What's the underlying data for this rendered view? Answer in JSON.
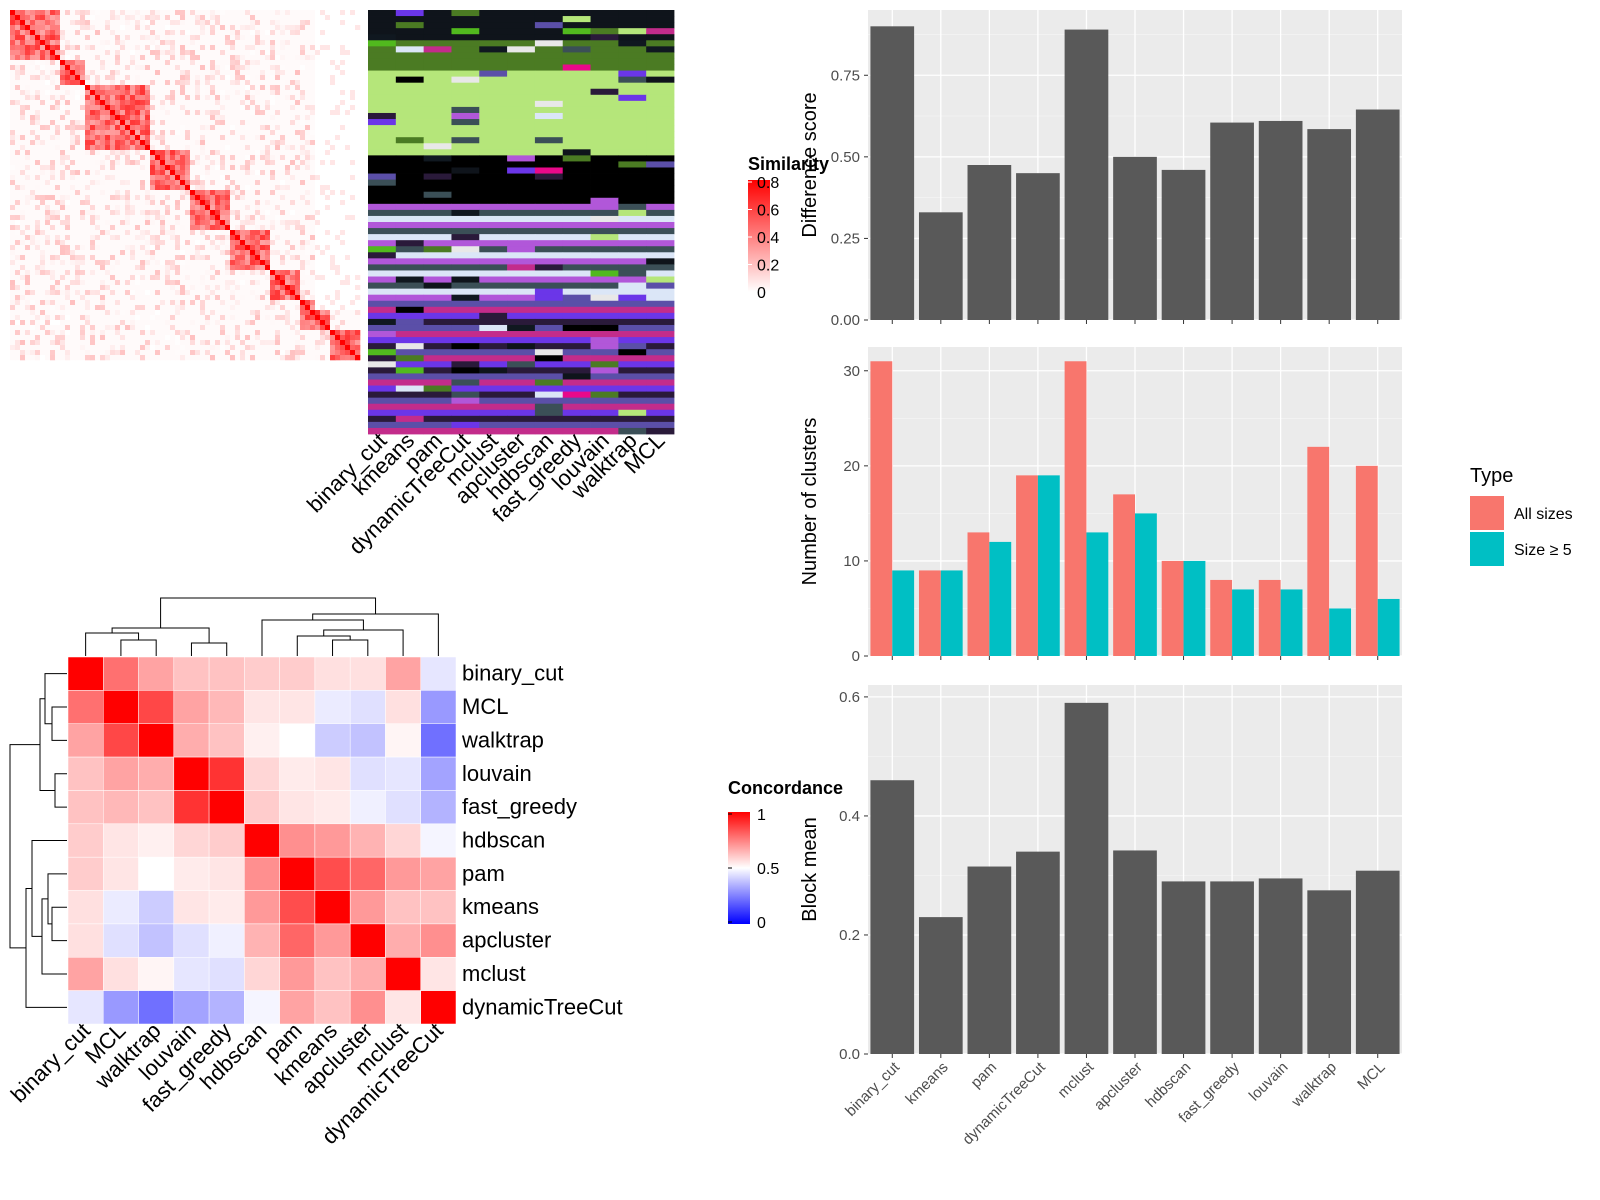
{
  "methods_order": [
    "binary_cut",
    "kmeans",
    "pam",
    "dynamicTreeCut",
    "mclust",
    "apcluster",
    "hdbscan",
    "fast_greedy",
    "louvain",
    "walktrap",
    "MCL"
  ],
  "similarity_panel": {
    "legend_title": "Similarity",
    "legend_ticks": [
      "0.8",
      "0.6",
      "0.4",
      "0.2",
      "0"
    ],
    "membership_labels": [
      "binary_cut",
      "kmeans",
      "pam",
      "dynamicTreeCut",
      "mclust",
      "apcluster",
      "hdbscan",
      "fast_greedy",
      "louvain",
      "walktrap",
      "MCL"
    ]
  },
  "concordance_panel": {
    "legend_title": "Concordance",
    "legend_ticks": [
      "1",
      "0.5",
      "0"
    ],
    "row_order": [
      "binary_cut",
      "MCL",
      "walktrap",
      "louvain",
      "fast_greedy",
      "hdbscan",
      "pam",
      "kmeans",
      "apcluster",
      "mclust",
      "dynamicTreeCut"
    ]
  },
  "chart_data": [
    {
      "type": "bar",
      "categories": [
        "binary_cut",
        "kmeans",
        "pam",
        "dynamicTreeCut",
        "mclust",
        "apcluster",
        "hdbscan",
        "fast_greedy",
        "louvain",
        "walktrap",
        "MCL"
      ],
      "values": [
        0.9,
        0.33,
        0.475,
        0.45,
        0.89,
        0.5,
        0.46,
        0.605,
        0.61,
        0.585,
        0.645
      ],
      "ylabel": "Difference score",
      "yticks": [
        "0.00",
        "0.25",
        "0.50",
        "0.75"
      ],
      "ylim": [
        0,
        0.95
      ],
      "grid": true,
      "bar_color": "#595959"
    },
    {
      "type": "bar",
      "categories": [
        "binary_cut",
        "kmeans",
        "pam",
        "dynamicTreeCut",
        "mclust",
        "apcluster",
        "hdbscan",
        "fast_greedy",
        "louvain",
        "walktrap",
        "MCL"
      ],
      "series": [
        {
          "name": "All sizes",
          "color": "#F8766D",
          "values": [
            31,
            9,
            13,
            19,
            31,
            17,
            10,
            8,
            8,
            22,
            20
          ]
        },
        {
          "name": "Size ≥ 5",
          "color": "#00BFC4",
          "values": [
            9,
            9,
            12,
            19,
            13,
            15,
            10,
            7,
            7,
            5,
            6
          ]
        }
      ],
      "ylabel": "Number of clusters",
      "yticks": [
        "0",
        "10",
        "20",
        "30"
      ],
      "ylim": [
        0,
        32.5
      ],
      "legend_title": "Type",
      "legend_placement": "right",
      "grid": true
    },
    {
      "type": "bar",
      "categories": [
        "binary_cut",
        "kmeans",
        "pam",
        "dynamicTreeCut",
        "mclust",
        "apcluster",
        "hdbscan",
        "fast_greedy",
        "louvain",
        "walktrap",
        "MCL"
      ],
      "values": [
        0.46,
        0.23,
        0.315,
        0.34,
        0.59,
        0.342,
        0.29,
        0.29,
        0.295,
        0.275,
        0.308
      ],
      "ylabel": "Block mean",
      "yticks": [
        "0.0",
        "0.2",
        "0.4",
        "0.6"
      ],
      "ylim": [
        0,
        0.62
      ],
      "grid": true,
      "bar_color": "#595959"
    },
    {
      "type": "heatmap",
      "rows": [
        "binary_cut",
        "MCL",
        "walktrap",
        "louvain",
        "fast_greedy",
        "hdbscan",
        "pam",
        "kmeans",
        "apcluster",
        "mclust",
        "dynamicTreeCut"
      ],
      "columns": [
        "binary_cut",
        "MCL",
        "walktrap",
        "louvain",
        "fast_greedy",
        "hdbscan",
        "pam",
        "kmeans",
        "apcluster",
        "mclust",
        "dynamicTreeCut"
      ],
      "values": [
        [
          1.0,
          0.78,
          0.68,
          0.62,
          0.62,
          0.6,
          0.6,
          0.56,
          0.56,
          0.68,
          0.45
        ],
        [
          0.78,
          1.0,
          0.86,
          0.68,
          0.64,
          0.55,
          0.55,
          0.46,
          0.44,
          0.56,
          0.3
        ],
        [
          0.68,
          0.86,
          1.0,
          0.66,
          0.62,
          0.53,
          0.5,
          0.4,
          0.38,
          0.52,
          0.22
        ],
        [
          0.62,
          0.68,
          0.66,
          1.0,
          0.9,
          0.58,
          0.54,
          0.55,
          0.44,
          0.45,
          0.32
        ],
        [
          0.62,
          0.64,
          0.62,
          0.9,
          1.0,
          0.6,
          0.55,
          0.54,
          0.47,
          0.44,
          0.35
        ],
        [
          0.6,
          0.55,
          0.53,
          0.58,
          0.6,
          1.0,
          0.72,
          0.7,
          0.65,
          0.58,
          0.48
        ],
        [
          0.6,
          0.55,
          0.5,
          0.54,
          0.55,
          0.72,
          1.0,
          0.85,
          0.8,
          0.7,
          0.68
        ],
        [
          0.56,
          0.46,
          0.4,
          0.55,
          0.54,
          0.7,
          0.85,
          1.0,
          0.7,
          0.62,
          0.62
        ],
        [
          0.56,
          0.44,
          0.38,
          0.44,
          0.47,
          0.65,
          0.8,
          0.7,
          1.0,
          0.66,
          0.72
        ],
        [
          0.68,
          0.56,
          0.52,
          0.45,
          0.44,
          0.58,
          0.7,
          0.62,
          0.66,
          1.0,
          0.55
        ],
        [
          0.45,
          0.3,
          0.22,
          0.32,
          0.35,
          0.48,
          0.68,
          0.62,
          0.72,
          0.55,
          1.0
        ]
      ],
      "color_scale": {
        "low": "#0000FF",
        "mid": "#FFFFFF",
        "high": "#FF0000",
        "range": [
          0,
          1
        ]
      }
    }
  ]
}
